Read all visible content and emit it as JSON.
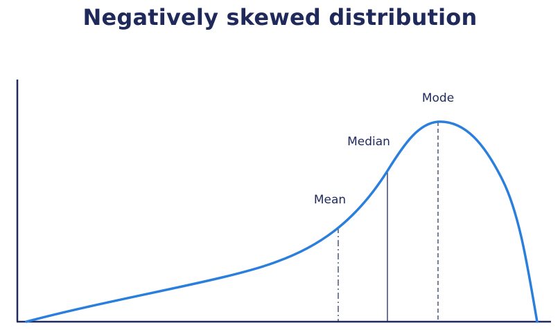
{
  "title": "Negatively skewed distribution",
  "labels": {
    "mean": "Mean",
    "median": "Median",
    "mode": "Mode"
  },
  "colors": {
    "curve": "#2b7fdc",
    "axis": "#1f2a5a",
    "marker": "#1f2a5a",
    "title": "#1f2a5a"
  }
}
